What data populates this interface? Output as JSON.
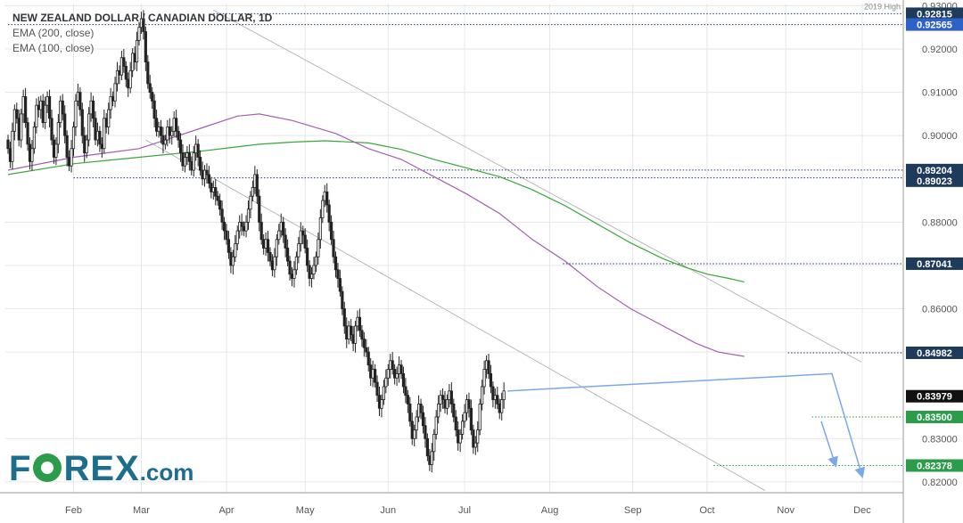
{
  "chart_data": {
    "type": "candlestick",
    "title": "NEW ZEALAND DOLLAR / CANADIAN DOLLAR, 1D",
    "indicators": [
      {
        "name": "EMA (200, close)",
        "color": "#3aa63a"
      },
      {
        "name": "EMA (100, close)",
        "color": "#a060b0"
      }
    ],
    "x_tick_labels": [
      "Feb",
      "Mar",
      "Apr",
      "May",
      "Jun",
      "Jul",
      "Aug",
      "Sep",
      "Oct",
      "Nov",
      "Dec"
    ],
    "y_tick_labels": [
      "0.93000",
      "0.92000",
      "0.91000",
      "0.90000",
      "0.88000",
      "0.87000",
      "0.86000",
      "0.85000",
      "0.83000",
      "0.82000"
    ],
    "ylim": [
      0.8175,
      0.9305
    ],
    "annotation": "2019 High",
    "price_labels": [
      {
        "value": 0.92815,
        "text": "0.92815",
        "bg": "#1f3b5c"
      },
      {
        "value": 0.92565,
        "text": "0.92565",
        "bg": "#2f62c8"
      },
      {
        "value": 0.89204,
        "text": "0.89204",
        "bg": "#1f3b5c"
      },
      {
        "value": 0.89023,
        "text": "0.89023",
        "bg": "#1f3b5c"
      },
      {
        "value": 0.87041,
        "text": "0.87041",
        "bg": "#1f3b5c"
      },
      {
        "value": 0.84982,
        "text": "0.84982",
        "bg": "#1f3b5c"
      },
      {
        "value": 0.83979,
        "text": "0.83979",
        "bg": "#111111"
      },
      {
        "value": 0.835,
        "text": "0.83500",
        "bg": "#2a9c4a"
      },
      {
        "value": 0.82378,
        "text": "0.82378",
        "bg": "#2a9c4a"
      }
    ],
    "colors": {
      "candle": "#222222",
      "channel": "#b8b8b8",
      "projection": "#7aa8e8",
      "grid": "#e6e6e6"
    },
    "ema200": [
      [
        0,
        0.891
      ],
      [
        30,
        0.8935
      ],
      [
        60,
        0.895
      ],
      [
        90,
        0.8965
      ],
      [
        115,
        0.898
      ],
      [
        130,
        0.8985
      ],
      [
        145,
        0.8988
      ],
      [
        165,
        0.8983
      ],
      [
        180,
        0.8968
      ],
      [
        195,
        0.8945
      ],
      [
        210,
        0.8925
      ],
      [
        225,
        0.8905
      ],
      [
        240,
        0.8875
      ],
      [
        255,
        0.8838
      ],
      [
        270,
        0.8795
      ],
      [
        285,
        0.8752
      ],
      [
        300,
        0.8715
      ],
      [
        310,
        0.8696
      ],
      [
        320,
        0.868
      ],
      [
        330,
        0.867
      ],
      [
        337,
        0.8662
      ]
    ],
    "ema100": [
      [
        0,
        0.892
      ],
      [
        30,
        0.895
      ],
      [
        60,
        0.897
      ],
      [
        90,
        0.902
      ],
      [
        105,
        0.9045
      ],
      [
        115,
        0.905
      ],
      [
        130,
        0.9035
      ],
      [
        150,
        0.9005
      ],
      [
        165,
        0.897
      ],
      [
        180,
        0.8945
      ],
      [
        195,
        0.8905
      ],
      [
        210,
        0.8865
      ],
      [
        225,
        0.882
      ],
      [
        240,
        0.876
      ],
      [
        255,
        0.871
      ],
      [
        270,
        0.865
      ],
      [
        285,
        0.86
      ],
      [
        300,
        0.856
      ],
      [
        315,
        0.852
      ],
      [
        325,
        0.85
      ],
      [
        337,
        0.849
      ]
    ],
    "candles": [
      [
        0.899,
        0.897
      ],
      [
        0.897,
        0.894
      ],
      [
        0.894,
        0.901
      ],
      [
        0.901,
        0.906
      ],
      [
        0.906,
        0.904
      ],
      [
        0.904,
        0.899
      ],
      [
        0.899,
        0.905
      ],
      [
        0.905,
        0.909
      ],
      [
        0.909,
        0.903
      ],
      [
        0.903,
        0.898
      ],
      [
        0.898,
        0.894
      ],
      [
        0.894,
        0.897
      ],
      [
        0.897,
        0.902
      ],
      [
        0.902,
        0.907
      ],
      [
        0.907,
        0.906
      ],
      [
        0.906,
        0.908
      ],
      [
        0.908,
        0.903
      ],
      [
        0.903,
        0.907
      ],
      [
        0.907,
        0.909
      ],
      [
        0.909,
        0.904
      ],
      [
        0.904,
        0.899
      ],
      [
        0.899,
        0.895
      ],
      [
        0.895,
        0.898
      ],
      [
        0.898,
        0.903
      ],
      [
        0.903,
        0.908
      ],
      [
        0.908,
        0.905
      ],
      [
        0.905,
        0.9
      ],
      [
        0.9,
        0.895
      ],
      [
        0.895,
        0.893
      ],
      [
        0.893,
        0.897
      ],
      [
        0.897,
        0.902
      ],
      [
        0.902,
        0.908
      ],
      [
        0.908,
        0.91
      ],
      [
        0.91,
        0.906
      ],
      [
        0.906,
        0.9
      ],
      [
        0.9,
        0.896
      ],
      [
        0.896,
        0.899
      ],
      [
        0.899,
        0.905
      ],
      [
        0.905,
        0.908
      ],
      [
        0.908,
        0.904
      ],
      [
        0.904,
        0.899
      ],
      [
        0.899,
        0.901
      ],
      [
        0.901,
        0.898
      ],
      [
        0.898,
        0.897
      ],
      [
        0.897,
        0.904
      ],
      [
        0.904,
        0.902
      ],
      [
        0.902,
        0.906
      ],
      [
        0.906,
        0.909
      ],
      [
        0.909,
        0.908
      ],
      [
        0.908,
        0.912
      ],
      [
        0.912,
        0.915
      ],
      [
        0.915,
        0.914
      ],
      [
        0.914,
        0.918
      ],
      [
        0.918,
        0.916
      ],
      [
        0.916,
        0.913
      ],
      [
        0.913,
        0.911
      ],
      [
        0.911,
        0.915
      ],
      [
        0.915,
        0.919
      ],
      [
        0.919,
        0.917
      ],
      [
        0.917,
        0.922
      ],
      [
        0.922,
        0.925
      ],
      [
        0.925,
        0.927
      ],
      [
        0.927,
        0.924
      ],
      [
        0.924,
        0.917
      ],
      [
        0.917,
        0.912
      ],
      [
        0.912,
        0.91
      ],
      [
        0.91,
        0.908
      ],
      [
        0.908,
        0.904
      ],
      [
        0.904,
        0.901
      ],
      [
        0.901,
        0.902
      ],
      [
        0.902,
        0.9
      ],
      [
        0.9,
        0.898
      ],
      [
        0.898,
        0.899
      ],
      [
        0.899,
        0.902
      ],
      [
        0.902,
        0.9
      ],
      [
        0.9,
        0.901
      ],
      [
        0.901,
        0.904
      ],
      [
        0.904,
        0.901
      ],
      [
        0.901,
        0.899
      ],
      [
        0.899,
        0.896
      ],
      [
        0.896,
        0.893
      ],
      [
        0.893,
        0.895
      ],
      [
        0.895,
        0.896
      ],
      [
        0.896,
        0.894
      ],
      [
        0.894,
        0.892
      ],
      [
        0.892,
        0.896
      ],
      [
        0.896,
        0.898
      ],
      [
        0.898,
        0.895
      ],
      [
        0.895,
        0.892
      ],
      [
        0.892,
        0.89
      ],
      [
        0.89,
        0.892
      ],
      [
        0.892,
        0.891
      ],
      [
        0.891,
        0.889
      ],
      [
        0.889,
        0.887
      ],
      [
        0.887,
        0.888
      ],
      [
        0.888,
        0.886
      ],
      [
        0.886,
        0.885
      ],
      [
        0.885,
        0.883
      ],
      [
        0.883,
        0.88
      ],
      [
        0.88,
        0.878
      ],
      [
        0.878,
        0.876
      ],
      [
        0.876,
        0.873
      ],
      [
        0.873,
        0.87
      ],
      [
        0.87,
        0.872
      ],
      [
        0.872,
        0.875
      ],
      [
        0.875,
        0.878
      ],
      [
        0.878,
        0.88
      ],
      [
        0.88,
        0.879
      ],
      [
        0.879,
        0.878
      ],
      [
        0.878,
        0.88
      ],
      [
        0.88,
        0.883
      ],
      [
        0.883,
        0.886
      ],
      [
        0.886,
        0.888
      ],
      [
        0.888,
        0.891
      ],
      [
        0.891,
        0.886
      ],
      [
        0.886,
        0.88
      ],
      [
        0.88,
        0.876
      ],
      [
        0.876,
        0.874
      ],
      [
        0.874,
        0.876
      ],
      [
        0.876,
        0.873
      ],
      [
        0.873,
        0.871
      ],
      [
        0.871,
        0.869
      ],
      [
        0.869,
        0.872
      ],
      [
        0.872,
        0.876
      ],
      [
        0.876,
        0.878
      ],
      [
        0.878,
        0.88
      ],
      [
        0.88,
        0.877
      ],
      [
        0.877,
        0.874
      ],
      [
        0.874,
        0.871
      ],
      [
        0.871,
        0.868
      ],
      [
        0.868,
        0.867
      ],
      [
        0.867,
        0.869
      ],
      [
        0.869,
        0.872
      ],
      [
        0.872,
        0.875
      ],
      [
        0.875,
        0.878
      ],
      [
        0.878,
        0.877
      ],
      [
        0.877,
        0.874
      ],
      [
        0.874,
        0.87
      ],
      [
        0.87,
        0.867
      ],
      [
        0.867,
        0.868
      ],
      [
        0.868,
        0.87
      ],
      [
        0.87,
        0.872
      ],
      [
        0.872,
        0.876
      ],
      [
        0.876,
        0.881
      ],
      [
        0.881,
        0.885
      ],
      [
        0.885,
        0.887
      ],
      [
        0.887,
        0.884
      ],
      [
        0.884,
        0.88
      ],
      [
        0.88,
        0.876
      ],
      [
        0.876,
        0.872
      ],
      [
        0.872,
        0.869
      ],
      [
        0.869,
        0.867
      ],
      [
        0.867,
        0.864
      ],
      [
        0.864,
        0.86
      ],
      [
        0.86,
        0.856
      ],
      [
        0.856,
        0.853
      ],
      [
        0.853,
        0.856
      ],
      [
        0.856,
        0.854
      ],
      [
        0.854,
        0.852
      ],
      [
        0.852,
        0.856
      ],
      [
        0.856,
        0.858
      ],
      [
        0.858,
        0.855
      ],
      [
        0.855,
        0.853
      ],
      [
        0.853,
        0.851
      ],
      [
        0.851,
        0.85
      ],
      [
        0.85,
        0.847
      ],
      [
        0.847,
        0.844
      ],
      [
        0.844,
        0.846
      ],
      [
        0.846,
        0.843
      ],
      [
        0.843,
        0.84
      ],
      [
        0.84,
        0.837
      ],
      [
        0.837,
        0.839
      ],
      [
        0.839,
        0.842
      ],
      [
        0.842,
        0.844
      ],
      [
        0.844,
        0.846
      ],
      [
        0.846,
        0.848
      ],
      [
        0.848,
        0.846
      ],
      [
        0.846,
        0.844
      ],
      [
        0.844,
        0.845
      ],
      [
        0.845,
        0.847
      ],
      [
        0.847,
        0.845
      ],
      [
        0.845,
        0.842
      ],
      [
        0.842,
        0.84
      ],
      [
        0.84,
        0.838
      ],
      [
        0.838,
        0.834
      ],
      [
        0.834,
        0.83
      ],
      [
        0.83,
        0.832
      ],
      [
        0.832,
        0.835
      ],
      [
        0.835,
        0.838
      ],
      [
        0.838,
        0.836
      ],
      [
        0.836,
        0.833
      ],
      [
        0.833,
        0.83
      ],
      [
        0.83,
        0.826
      ],
      [
        0.826,
        0.824
      ],
      [
        0.824,
        0.827
      ],
      [
        0.827,
        0.831
      ],
      [
        0.831,
        0.835
      ],
      [
        0.835,
        0.838
      ],
      [
        0.838,
        0.84
      ],
      [
        0.84,
        0.839
      ],
      [
        0.839,
        0.837
      ],
      [
        0.837,
        0.839
      ],
      [
        0.839,
        0.841
      ],
      [
        0.841,
        0.838
      ],
      [
        0.838,
        0.835
      ],
      [
        0.835,
        0.832
      ],
      [
        0.832,
        0.829
      ],
      [
        0.829,
        0.831
      ],
      [
        0.831,
        0.834
      ],
      [
        0.834,
        0.836
      ],
      [
        0.836,
        0.839
      ],
      [
        0.839,
        0.837
      ],
      [
        0.837,
        0.832
      ],
      [
        0.832,
        0.828
      ],
      [
        0.828,
        0.829
      ],
      [
        0.829,
        0.832
      ],
      [
        0.832,
        0.838
      ],
      [
        0.838,
        0.842
      ],
      [
        0.842,
        0.846
      ],
      [
        0.846,
        0.848
      ],
      [
        0.848,
        0.845
      ],
      [
        0.845,
        0.842
      ],
      [
        0.842,
        0.839
      ],
      [
        0.839,
        0.84
      ],
      [
        0.84,
        0.838
      ],
      [
        0.838,
        0.836
      ],
      [
        0.836,
        0.839
      ],
      [
        0.839,
        0.841
      ]
    ]
  },
  "branding": {
    "logo_word_a": "F",
    "logo_word_b": "REX",
    "logo_suffix": ".com"
  }
}
